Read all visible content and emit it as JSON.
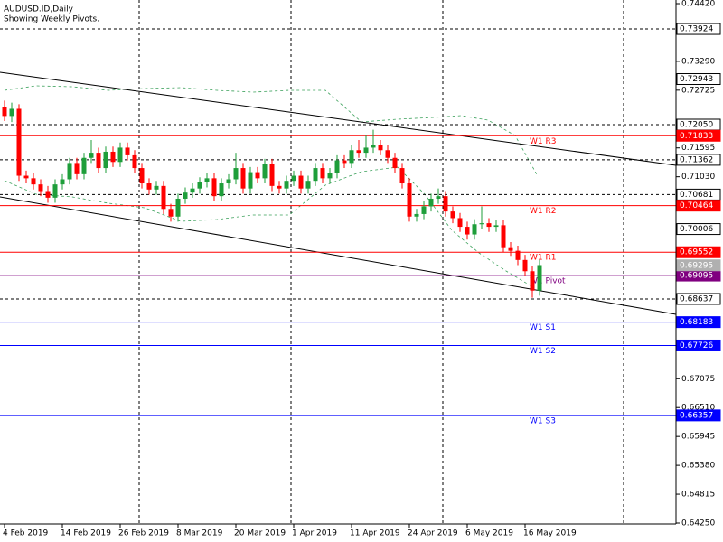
{
  "chart_data": {
    "type": "candlestick",
    "title": "AUDUSD.ID,Daily",
    "subtitle": "Showing Weekly Pivots.",
    "categories": [
      "4 Feb 2019",
      null,
      null,
      null,
      null,
      null,
      null,
      null,
      "14 Feb 2019",
      null,
      null,
      null,
      null,
      null,
      null,
      null,
      "26 Feb 2019",
      null,
      null,
      null,
      null,
      null,
      null,
      null,
      "8 Mar 2019",
      null,
      null,
      null,
      null,
      null,
      null,
      null,
      "20 Mar 2019",
      null,
      null,
      null,
      null,
      null,
      null,
      null,
      "1 Apr 2019",
      null,
      null,
      null,
      null,
      null,
      null,
      null,
      "11 Apr 2019",
      null,
      null,
      null,
      null,
      null,
      null,
      null,
      "24 Apr 2019",
      null,
      null,
      null,
      null,
      null,
      null,
      null,
      "6 May 2019",
      null,
      null,
      null,
      null,
      null,
      null,
      null,
      "16 May 2019",
      null,
      null
    ],
    "open": [
      0.724,
      0.7222,
      0.7236,
      0.7105,
      0.71,
      0.7088,
      0.7075,
      0.7062,
      0.7088,
      0.7098,
      0.713,
      0.7108,
      0.714,
      0.715,
      0.712,
      0.7152,
      0.7132,
      0.716,
      0.7145,
      0.712,
      0.709,
      0.7078,
      0.7085,
      0.704,
      0.7025,
      0.706,
      0.7072,
      0.708,
      0.7092,
      0.71,
      0.7065,
      0.709,
      0.7098,
      0.712,
      0.708,
      0.7112,
      0.71,
      0.7128,
      0.7085,
      0.708,
      0.7095,
      0.7105,
      0.708,
      0.7095,
      0.712,
      0.71,
      0.711,
      0.7135,
      0.713,
      0.7155,
      0.715,
      0.716,
      0.7165,
      0.7155,
      0.714,
      0.712,
      0.709,
      0.7025,
      0.703,
      0.7045,
      0.706,
      0.7065,
      0.7035,
      0.7022,
      0.7005,
      0.699,
      0.701,
      0.7012,
      0.7005,
      0.7008,
      0.6965,
      0.6958,
      0.694,
      0.6918,
      0.688
    ],
    "high": [
      0.7252,
      0.7248,
      0.7245,
      0.7115,
      0.711,
      0.7098,
      0.7085,
      0.7098,
      0.7108,
      0.714,
      0.714,
      0.715,
      0.7175,
      0.716,
      0.7162,
      0.7162,
      0.717,
      0.717,
      0.7155,
      0.713,
      0.71,
      0.7095,
      0.7095,
      0.705,
      0.707,
      0.7082,
      0.709,
      0.7102,
      0.711,
      0.711,
      0.71,
      0.7108,
      0.715,
      0.713,
      0.7122,
      0.7122,
      0.7138,
      0.7138,
      0.7095,
      0.7105,
      0.7115,
      0.7115,
      0.7105,
      0.713,
      0.713,
      0.712,
      0.7145,
      0.7145,
      0.7165,
      0.7175,
      0.7185,
      0.7195,
      0.7175,
      0.7165,
      0.715,
      0.713,
      0.71,
      0.704,
      0.7055,
      0.707,
      0.708,
      0.7075,
      0.7045,
      0.7032,
      0.7015,
      0.702,
      0.7045,
      0.7022,
      0.7018,
      0.7018,
      0.6975,
      0.6968,
      0.695,
      0.6928,
      0.694
    ],
    "low": [
      0.7212,
      0.721,
      0.7095,
      0.709,
      0.7078,
      0.7065,
      0.7052,
      0.7052,
      0.7078,
      0.7088,
      0.7098,
      0.7098,
      0.713,
      0.711,
      0.711,
      0.7122,
      0.7122,
      0.7135,
      0.711,
      0.708,
      0.7068,
      0.7068,
      0.703,
      0.7015,
      0.7015,
      0.705,
      0.7062,
      0.707,
      0.7082,
      0.7055,
      0.7055,
      0.708,
      0.7088,
      0.707,
      0.707,
      0.709,
      0.709,
      0.7075,
      0.707,
      0.707,
      0.7085,
      0.707,
      0.707,
      0.7085,
      0.709,
      0.709,
      0.71,
      0.712,
      0.712,
      0.714,
      0.714,
      0.715,
      0.7145,
      0.713,
      0.711,
      0.708,
      0.7015,
      0.7015,
      0.702,
      0.7035,
      0.705,
      0.7025,
      0.7012,
      0.6995,
      0.698,
      0.698,
      0.7,
      0.6995,
      0.6995,
      0.6955,
      0.6948,
      0.693,
      0.6908,
      0.6866,
      0.687
    ],
    "close": [
      0.7222,
      0.7236,
      0.7105,
      0.71,
      0.7088,
      0.7075,
      0.7062,
      0.7088,
      0.7098,
      0.713,
      0.7108,
      0.714,
      0.715,
      0.712,
      0.7152,
      0.7132,
      0.716,
      0.7145,
      0.712,
      0.709,
      0.7078,
      0.7085,
      0.704,
      0.7025,
      0.706,
      0.7072,
      0.708,
      0.7092,
      0.71,
      0.7065,
      0.709,
      0.7098,
      0.712,
      0.708,
      0.7112,
      0.71,
      0.7128,
      0.7085,
      0.708,
      0.7095,
      0.7105,
      0.708,
      0.7095,
      0.712,
      0.71,
      0.711,
      0.7135,
      0.713,
      0.7155,
      0.715,
      0.716,
      0.7165,
      0.7155,
      0.714,
      0.712,
      0.709,
      0.7025,
      0.703,
      0.7045,
      0.706,
      0.7065,
      0.7035,
      0.7022,
      0.7005,
      0.699,
      0.701,
      0.7012,
      0.7005,
      0.7008,
      0.6965,
      0.6958,
      0.694,
      0.6918,
      0.688,
      0.693
    ],
    "up_color": "#1e9e3a",
    "down_color": "#ff0000",
    "ylim": [
      0.6425,
      0.7442
    ],
    "yticks": [
      {
        "value": 0.7442,
        "label": "0.74420"
      },
      {
        "value": 0.7329,
        "label": "0.73290"
      },
      0.72725,
      0.71595,
      {
        "value": 0.7103,
        "label": "0.71030"
      },
      0.67075,
      {
        "value": 0.6651,
        "label": "0.66510"
      },
      0.65945,
      {
        "value": 0.6538,
        "label": "0.65380"
      },
      0.64815,
      {
        "value": 0.6425,
        "label": "0.64250"
      }
    ],
    "price_lines": [
      0.73924,
      0.72943,
      {
        "value": 0.7205,
        "label": "0.72050"
      },
      0.71362,
      0.70681,
      0.70006,
      0.68637
    ],
    "pivots": [
      {
        "name": "W1 R3",
        "value": 0.71833,
        "color": "#ff0000"
      },
      {
        "name": "W1 R2",
        "value": 0.70464,
        "color": "#ff0000"
      },
      {
        "name": "W1 R1",
        "value": 0.69552,
        "color": "#ff0000"
      },
      {
        "name": "W1 Pivot",
        "value": 0.69095,
        "color": "#800080"
      },
      {
        "name": "W1 S1",
        "value": 0.68183,
        "color": "#0000ff"
      },
      {
        "name": "W1 S2",
        "value": 0.67726,
        "color": "#0000ff"
      },
      {
        "name": "W1 S3",
        "value": 0.66357,
        "color": "#0000ff"
      }
    ],
    "current_price": 0.69295,
    "current_color": "#b0b0b0"
  }
}
